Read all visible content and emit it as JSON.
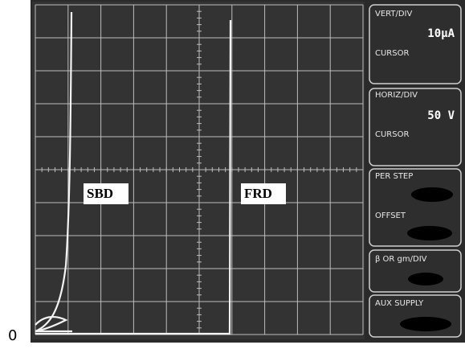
{
  "screen": {
    "origin_label": "0",
    "traces": [
      {
        "label": "SBD"
      },
      {
        "label": "FRD"
      }
    ]
  },
  "panel": {
    "vert_div": {
      "title": "VERT/DIV",
      "value": "10μA",
      "cursor": "CURSOR"
    },
    "horiz_div": {
      "title": "HORIZ/DIV",
      "value": "50 V",
      "cursor": "CURSOR"
    },
    "step": {
      "per_step": "PER STEP",
      "offset": "OFFSET"
    },
    "beta": {
      "title": "β OR gm/DIV"
    },
    "aux": {
      "title": "AUX SUPPLY"
    }
  }
}
